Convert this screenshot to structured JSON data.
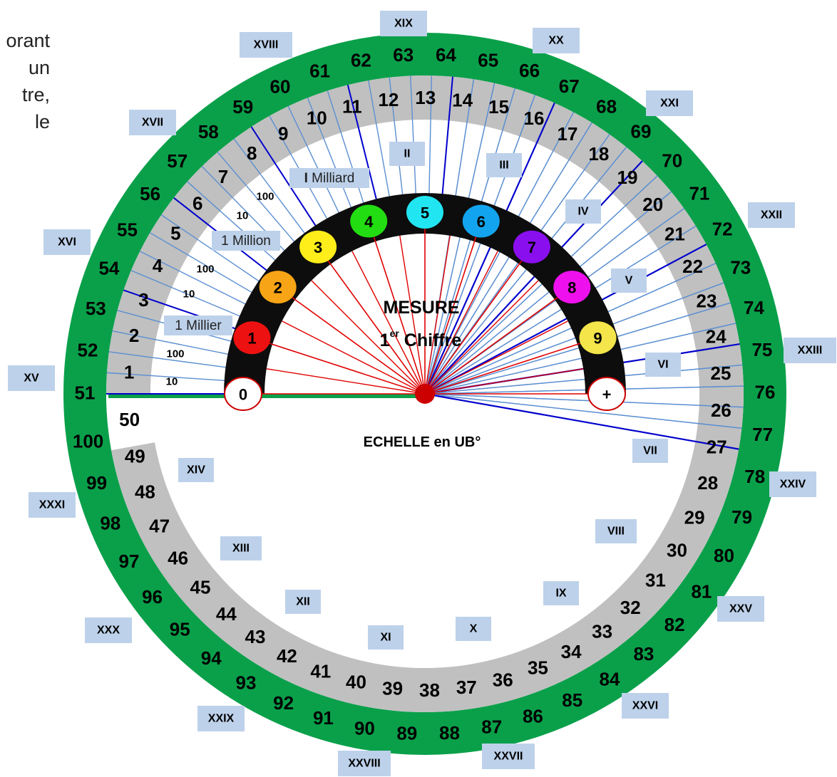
{
  "corner_text": [
    "orant",
    "un",
    "tre,",
    "le"
  ],
  "center": {
    "title": "MESURE",
    "subtitle_number": "1",
    "subtitle_sup": "er",
    "subtitle_rest": " Chiffre",
    "scale_label": "ECHELLE en UB°"
  },
  "colors": {
    "green_ring": "#0aa04a",
    "grey_ring": "#c0c0c0",
    "black_arc": "#0d0d0d",
    "roman_box": "#bdd1ea",
    "line_blue_dark": "#0000cc",
    "line_blue_light": "#5b8fd1",
    "line_red": "#e00000",
    "hub": "#cc0000"
  },
  "outer_numbers": [
    "51",
    "52",
    "53",
    "54",
    "55",
    "56",
    "57",
    "58",
    "59",
    "60",
    "61",
    "62",
    "63",
    "64",
    "65",
    "66",
    "67",
    "68",
    "69",
    "70",
    "71",
    "72",
    "73",
    "74",
    "75",
    "76",
    "77",
    "78",
    "79",
    "80",
    "81",
    "82",
    "83",
    "84",
    "85",
    "86",
    "87",
    "88",
    "89",
    "90",
    "91",
    "92",
    "93",
    "94",
    "95",
    "96",
    "97",
    "98",
    "99",
    "100"
  ],
  "inner_numbers": [
    "1",
    "2",
    "3",
    "4",
    "5",
    "6",
    "7",
    "8",
    "9",
    "10",
    "11",
    "12",
    "13",
    "14",
    "15",
    "16",
    "17",
    "18",
    "19",
    "20",
    "21",
    "22",
    "23",
    "24",
    "25",
    "26",
    "27",
    "28",
    "29",
    "30",
    "31",
    "32",
    "33",
    "34",
    "35",
    "36",
    "37",
    "38",
    "39",
    "40",
    "41",
    "42",
    "43",
    "44",
    "45",
    "46",
    "47",
    "48",
    "49",
    "50"
  ],
  "roman_numerals": [
    {
      "label": "XV"
    },
    {
      "label": "XVI"
    },
    {
      "label": "XVII"
    },
    {
      "label": "XVIII"
    },
    {
      "label": "XIX"
    },
    {
      "label": "XX"
    },
    {
      "label": "XXI"
    },
    {
      "label": "XXII"
    },
    {
      "label": "XXIII"
    },
    {
      "label": "XXIV"
    },
    {
      "label": "XXV"
    },
    {
      "label": "XXVI"
    },
    {
      "label": "XXVII"
    },
    {
      "label": "XXVIII"
    },
    {
      "label": "XXIX"
    },
    {
      "label": "XXX"
    },
    {
      "label": "XXXI"
    },
    {
      "label": "II"
    },
    {
      "label": "III"
    },
    {
      "label": "IV"
    },
    {
      "label": "V"
    },
    {
      "label": "VI"
    },
    {
      "label": "VII"
    },
    {
      "label": "VIII"
    },
    {
      "label": "IX"
    },
    {
      "label": "X"
    },
    {
      "label": "XI"
    },
    {
      "label": "XII"
    },
    {
      "label": "XIII"
    },
    {
      "label": "XIV"
    }
  ],
  "magnitude_labels": [
    {
      "text": "10"
    },
    {
      "text": "100"
    },
    {
      "text": "1 Millier"
    },
    {
      "text": "10"
    },
    {
      "text": "100"
    },
    {
      "text": "1 Million"
    },
    {
      "text": "10"
    },
    {
      "text": "100"
    },
    {
      "text_bold": "I",
      "text": " Milliard"
    }
  ],
  "digit_circles": [
    {
      "label": "0",
      "color": "#ffffff",
      "text_color": "#000000"
    },
    {
      "label": "1",
      "color": "#ee1111",
      "text_color": "#000000"
    },
    {
      "label": "2",
      "color": "#f7a416",
      "text_color": "#000000"
    },
    {
      "label": "3",
      "color": "#ffee1a",
      "text_color": "#000000"
    },
    {
      "label": "4",
      "color": "#22dd11",
      "text_color": "#000000"
    },
    {
      "label": "5",
      "color": "#22e5f2",
      "text_color": "#000000"
    },
    {
      "label": "6",
      "color": "#12a4ee",
      "text_color": "#000000"
    },
    {
      "label": "7",
      "color": "#8a0fef",
      "text_color": "#000000"
    },
    {
      "label": "8",
      "color": "#ee11ee",
      "text_color": "#000000"
    },
    {
      "label": "9",
      "color": "#f3e54a",
      "text_color": "#000000"
    },
    {
      "label": "+",
      "color": "#ffffff",
      "text_color": "#000000"
    }
  ]
}
